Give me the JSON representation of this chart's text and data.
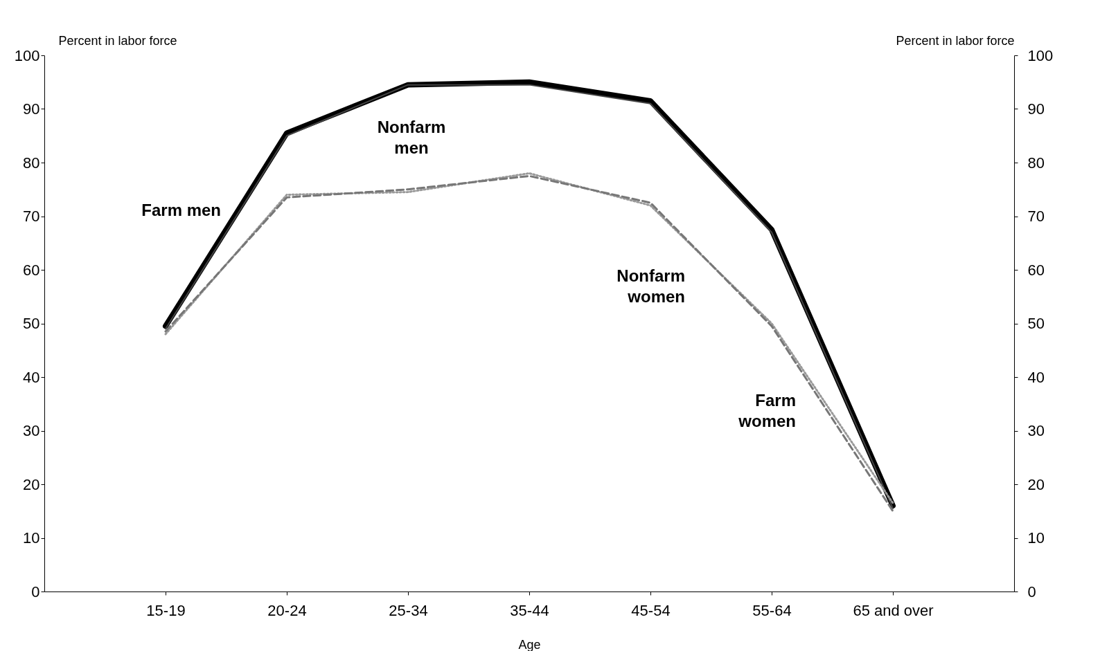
{
  "chart_data": {
    "type": "line",
    "xlabel": "Age",
    "ylabel": "Percent in labor force",
    "y2label": "Percent in labor force",
    "categories": [
      "15-19",
      "20-24",
      "25-34",
      "35-44",
      "45-54",
      "55-64",
      "65 and over"
    ],
    "series": [
      {
        "name": "Farm men",
        "color": "#000000",
        "line_style": "solid",
        "values": [
          49.5,
          85.5,
          94.5,
          95,
          91.5,
          67.5,
          16
        ]
      },
      {
        "name": "Nonfarm men",
        "color": "#444444",
        "line_style": "solid",
        "values": [
          49,
          85,
          94.5,
          94.5,
          91,
          67,
          15.5
        ]
      },
      {
        "name": "Nonfarm women",
        "color": "#999999",
        "line_style": "dotted",
        "values": [
          48,
          74,
          74.5,
          78,
          72,
          50,
          16.5
        ]
      },
      {
        "name": "Farm women",
        "color": "#777777",
        "line_style": "dashed",
        "values": [
          48.5,
          73.5,
          75,
          77.5,
          72.5,
          49.5,
          15
        ]
      }
    ],
    "ylim": [
      0,
      100
    ],
    "yticks": [
      0,
      10,
      20,
      30,
      40,
      50,
      60,
      70,
      80,
      90,
      100
    ],
    "y2lim": [
      0,
      100
    ],
    "y2ticks": [
      0,
      10,
      20,
      30,
      40,
      50,
      60,
      70,
      80,
      90,
      100
    ],
    "grid": false,
    "marker": "none"
  }
}
